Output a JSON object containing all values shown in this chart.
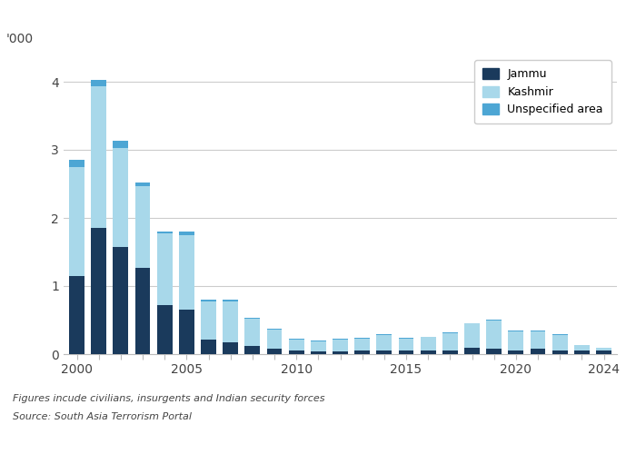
{
  "ylabel": "'000",
  "years": [
    2000,
    2001,
    2002,
    2003,
    2004,
    2005,
    2006,
    2007,
    2008,
    2009,
    2010,
    2011,
    2012,
    2013,
    2014,
    2015,
    2016,
    2017,
    2018,
    2019,
    2020,
    2021,
    2022,
    2023,
    2024
  ],
  "jammu": [
    1.15,
    1.85,
    1.58,
    1.27,
    0.72,
    0.65,
    0.22,
    0.18,
    0.12,
    0.08,
    0.05,
    0.04,
    0.04,
    0.05,
    0.06,
    0.05,
    0.05,
    0.06,
    0.1,
    0.08,
    0.06,
    0.08,
    0.06,
    0.06,
    0.05
  ],
  "kashmir": [
    1.6,
    2.08,
    1.45,
    1.2,
    1.05,
    1.1,
    0.55,
    0.6,
    0.4,
    0.28,
    0.17,
    0.15,
    0.18,
    0.18,
    0.22,
    0.18,
    0.2,
    0.25,
    0.35,
    0.42,
    0.28,
    0.26,
    0.22,
    0.07,
    0.04
  ],
  "unspecified": [
    0.1,
    0.1,
    0.1,
    0.05,
    0.03,
    0.05,
    0.03,
    0.02,
    0.02,
    0.01,
    0.01,
    0.01,
    0.01,
    0.01,
    0.01,
    0.01,
    0.01,
    0.01,
    0.01,
    0.01,
    0.01,
    0.01,
    0.01,
    0.01,
    0.01
  ],
  "color_jammu": "#1a3a5c",
  "color_kashmir": "#a8d8ea",
  "color_unspecified": "#4da6d4",
  "legend_labels": [
    "Jammu",
    "Kashmir",
    "Unspecified area"
  ],
  "footnote1": "Figures incude civilians, insurgents and Indian security forces",
  "footnote2": "Source: South Asia Terrorism Portal",
  "ylim": [
    0,
    4.4
  ],
  "yticks": [
    0,
    1,
    2,
    3,
    4
  ],
  "background_color": "#ffffff",
  "grid_color": "#cccccc"
}
